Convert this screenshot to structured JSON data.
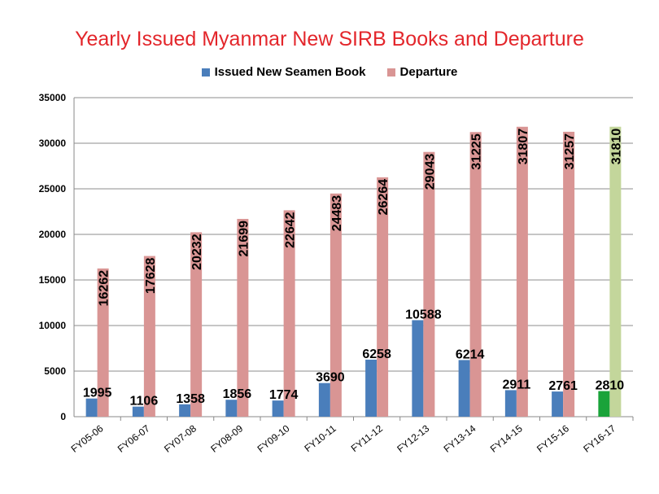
{
  "chart_data": {
    "type": "bar",
    "title": "Yearly Issued Myanmar New SIRB Books and Departure",
    "xlabel": "",
    "ylabel": "",
    "ylim": [
      0,
      35000
    ],
    "yticks": [
      0,
      5000,
      10000,
      15000,
      20000,
      25000,
      30000,
      35000
    ],
    "ytick_labels": [
      "0",
      "5000",
      "10000",
      "15000",
      "20000",
      "25000",
      "30000",
      "35000"
    ],
    "grid": true,
    "legend_position": "top",
    "categories": [
      "FY05-06",
      "FY06-07",
      "FY07-08",
      "FY08-09",
      "FY09-10",
      "FY10-11",
      "FY11-12",
      "FY12-13",
      "FY13-14",
      "FY14-15",
      "FY15-16",
      "FY16-17"
    ],
    "series": [
      {
        "name": "Issued New Seamen Book",
        "color": "#4a7ebb",
        "highlight_color": "#1aa33a",
        "values": [
          1995,
          1106,
          1358,
          1856,
          1774,
          3690,
          6258,
          10588,
          6214,
          2911,
          2761,
          2810
        ],
        "labels": [
          "1995",
          "1106",
          "1358",
          "1856",
          "1774",
          "3690",
          "6258",
          "10588",
          "6214",
          "2911",
          "2761",
          "2810"
        ]
      },
      {
        "name": "Departure",
        "color": "#d99594",
        "highlight_color": "#c3d69b",
        "values": [
          16262,
          17628,
          20232,
          21699,
          22642,
          24483,
          26264,
          29043,
          31225,
          31807,
          31257,
          31810
        ],
        "labels": [
          "16262",
          "17628",
          "20232",
          "21699",
          "22642",
          "24483",
          "26264",
          "29043",
          "31225",
          "31807",
          "31257",
          "31810"
        ]
      }
    ],
    "highlight_category": "FY16-17"
  }
}
